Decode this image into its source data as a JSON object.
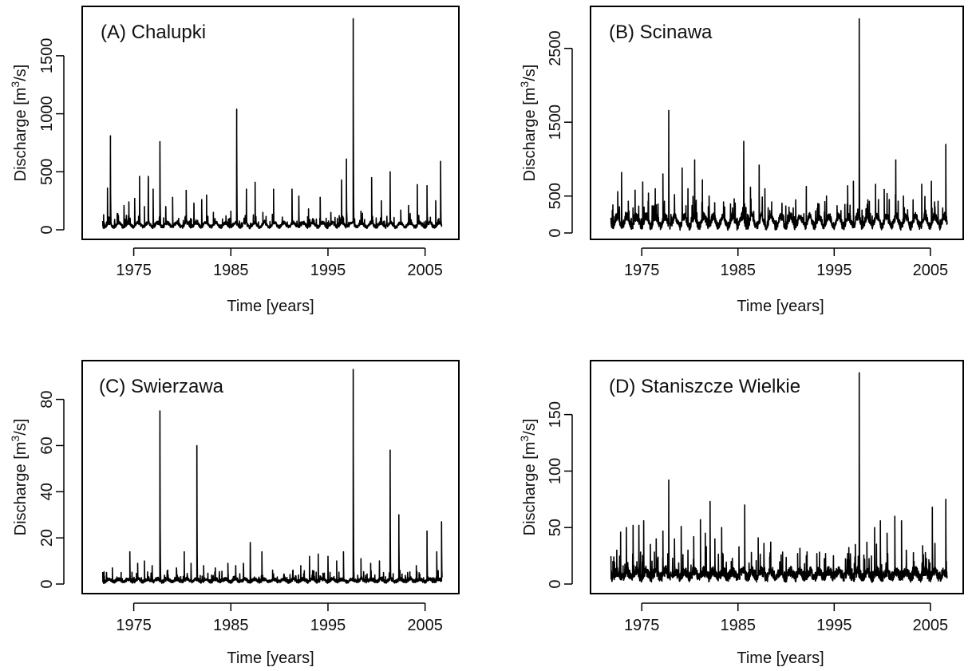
{
  "chart_data": [
    {
      "type": "line",
      "title": "(A) Chalupki",
      "xlabel": "Time [years]",
      "ylabel_main": "Discharge [m",
      "ylabel_sup": "3",
      "ylabel_end": "/s]",
      "xlim": [
        1971.5,
        2007.0
      ],
      "ylim": [
        0,
        1850
      ],
      "xticks": [
        1975,
        1985,
        1995,
        2005
      ],
      "yticks": [
        0,
        500,
        1000,
        1500
      ],
      "base": 40,
      "noise": 30,
      "peaks": [
        [
          1971.9,
          130
        ],
        [
          1972.3,
          360
        ],
        [
          1972.6,
          810
        ],
        [
          1973.3,
          140
        ],
        [
          1974.0,
          210
        ],
        [
          1974.5,
          240
        ],
        [
          1975.1,
          270
        ],
        [
          1975.6,
          460
        ],
        [
          1976.1,
          200
        ],
        [
          1976.5,
          460
        ],
        [
          1977.0,
          350
        ],
        [
          1977.7,
          760
        ],
        [
          1978.3,
          200
        ],
        [
          1979.0,
          280
        ],
        [
          1980.4,
          340
        ],
        [
          1981.2,
          230
        ],
        [
          1982.0,
          260
        ],
        [
          1982.5,
          300
        ],
        [
          1983.2,
          150
        ],
        [
          1984.5,
          120
        ],
        [
          1985.0,
          160
        ],
        [
          1985.6,
          1040
        ],
        [
          1986.6,
          350
        ],
        [
          1987.5,
          410
        ],
        [
          1988.3,
          150
        ],
        [
          1989.4,
          350
        ],
        [
          1990.3,
          110
        ],
        [
          1991.3,
          350
        ],
        [
          1992.0,
          290
        ],
        [
          1993.0,
          180
        ],
        [
          1994.2,
          280
        ],
        [
          1995.3,
          150
        ],
        [
          1996.4,
          430
        ],
        [
          1996.9,
          610
        ],
        [
          1997.6,
          1820
        ],
        [
          1998.4,
          160
        ],
        [
          1999.5,
          450
        ],
        [
          2000.5,
          250
        ],
        [
          2001.4,
          500
        ],
        [
          2002.5,
          170
        ],
        [
          2003.3,
          210
        ],
        [
          2004.2,
          390
        ],
        [
          2005.2,
          380
        ],
        [
          2006.1,
          250
        ],
        [
          2006.6,
          590
        ]
      ]
    },
    {
      "type": "line",
      "title": "(B) Scinawa",
      "xlabel": "Time [years]",
      "ylabel_main": "Discharge [m",
      "ylabel_sup": "3",
      "ylabel_end": "/s]",
      "xlim": [
        1971.5,
        2007.0
      ],
      "ylim": [
        0,
        2950
      ],
      "xticks": [
        1975,
        1985,
        1995,
        2005
      ],
      "yticks": [
        0,
        500,
        1500,
        2500
      ],
      "base": 150,
      "noise": 110,
      "peaks": [
        [
          1972.0,
          380
        ],
        [
          1972.5,
          560
        ],
        [
          1972.9,
          820
        ],
        [
          1973.6,
          430
        ],
        [
          1974.3,
          580
        ],
        [
          1975.1,
          690
        ],
        [
          1975.7,
          540
        ],
        [
          1976.4,
          600
        ],
        [
          1977.2,
          800
        ],
        [
          1977.8,
          1660
        ],
        [
          1978.4,
          520
        ],
        [
          1979.2,
          880
        ],
        [
          1979.8,
          600
        ],
        [
          1980.5,
          990
        ],
        [
          1981.3,
          720
        ],
        [
          1982.0,
          500
        ],
        [
          1983.5,
          420
        ],
        [
          1984.6,
          400
        ],
        [
          1985.6,
          1240
        ],
        [
          1986.3,
          620
        ],
        [
          1987.2,
          920
        ],
        [
          1987.8,
          600
        ],
        [
          1988.5,
          420
        ],
        [
          1990.3,
          350
        ],
        [
          1991.0,
          450
        ],
        [
          1992.1,
          630
        ],
        [
          1993.3,
          400
        ],
        [
          1994.2,
          500
        ],
        [
          1995.3,
          370
        ],
        [
          1996.4,
          640
        ],
        [
          1997.0,
          700
        ],
        [
          1997.6,
          2900
        ],
        [
          1998.5,
          450
        ],
        [
          1999.3,
          660
        ],
        [
          2000.2,
          590
        ],
        [
          2001.4,
          990
        ],
        [
          2002.2,
          500
        ],
        [
          2003.2,
          450
        ],
        [
          2004.1,
          660
        ],
        [
          2005.1,
          700
        ],
        [
          2005.8,
          430
        ],
        [
          2006.6,
          1200
        ]
      ]
    },
    {
      "type": "line",
      "title": "(C) Swierzawa",
      "xlabel": "Time [years]",
      "ylabel_main": "Discharge [m",
      "ylabel_sup": "3",
      "ylabel_end": "/s]",
      "xlim": [
        1971.5,
        2007.0
      ],
      "ylim": [
        0,
        93
      ],
      "xticks": [
        1975,
        1985,
        1995,
        2005
      ],
      "yticks": [
        0,
        20,
        40,
        60,
        80
      ],
      "base": 1.2,
      "noise": 1.5,
      "peaks": [
        [
          1972.2,
          5
        ],
        [
          1972.8,
          7
        ],
        [
          1973.7,
          5
        ],
        [
          1974.6,
          14
        ],
        [
          1975.4,
          9
        ],
        [
          1976.1,
          10
        ],
        [
          1976.9,
          8
        ],
        [
          1977.7,
          75
        ],
        [
          1978.5,
          6
        ],
        [
          1979.4,
          7
        ],
        [
          1980.2,
          14
        ],
        [
          1980.9,
          9
        ],
        [
          1981.5,
          60
        ],
        [
          1982.2,
          8
        ],
        [
          1983.4,
          7
        ],
        [
          1984.7,
          9
        ],
        [
          1985.5,
          8
        ],
        [
          1986.3,
          9
        ],
        [
          1987.0,
          18
        ],
        [
          1988.2,
          14
        ],
        [
          1989.3,
          6
        ],
        [
          1990.5,
          4
        ],
        [
          1991.4,
          6
        ],
        [
          1992.2,
          8
        ],
        [
          1993.1,
          12
        ],
        [
          1994.0,
          13
        ],
        [
          1995.0,
          12
        ],
        [
          1995.9,
          10
        ],
        [
          1996.6,
          14
        ],
        [
          1997.6,
          93
        ],
        [
          1998.4,
          11
        ],
        [
          1999.4,
          9
        ],
        [
          2000.3,
          10
        ],
        [
          2001.4,
          58
        ],
        [
          2002.3,
          30
        ],
        [
          2003.2,
          5
        ],
        [
          2004.1,
          8
        ],
        [
          2005.2,
          23
        ],
        [
          2006.2,
          14
        ],
        [
          2006.7,
          27
        ]
      ]
    },
    {
      "type": "line",
      "title": "(D) Staniszcze Wielkie",
      "xlabel": "Time [years]",
      "ylabel_main": "Discharge [m",
      "ylabel_sup": "3",
      "ylabel_end": "/s]",
      "xlim": [
        1971.5,
        2007.0
      ],
      "ylim": [
        0,
        190
      ],
      "xticks": [
        1975,
        1985,
        1995,
        2005
      ],
      "yticks": [
        0,
        50,
        100,
        150
      ],
      "base": 6,
      "noise": 9,
      "peaks": [
        [
          1972.0,
          20
        ],
        [
          1972.4,
          30
        ],
        [
          1972.8,
          46
        ],
        [
          1973.4,
          50
        ],
        [
          1974.1,
          52
        ],
        [
          1974.7,
          52
        ],
        [
          1975.2,
          56
        ],
        [
          1975.9,
          35
        ],
        [
          1976.5,
          40
        ],
        [
          1977.2,
          47
        ],
        [
          1977.8,
          92
        ],
        [
          1978.4,
          40
        ],
        [
          1979.1,
          51
        ],
        [
          1979.8,
          30
        ],
        [
          1980.4,
          42
        ],
        [
          1981.1,
          57
        ],
        [
          1981.6,
          45
        ],
        [
          1982.1,
          73
        ],
        [
          1982.6,
          40
        ],
        [
          1983.3,
          50
        ],
        [
          1984.3,
          20
        ],
        [
          1985.1,
          33
        ],
        [
          1985.7,
          70
        ],
        [
          1986.4,
          28
        ],
        [
          1987.1,
          41
        ],
        [
          1987.7,
          36
        ],
        [
          1988.3,
          24
        ],
        [
          1989.2,
          12
        ],
        [
          1991.2,
          27
        ],
        [
          1992.1,
          25
        ],
        [
          1993.2,
          27
        ],
        [
          1994.1,
          27
        ],
        [
          1995.1,
          10
        ],
        [
          1996.4,
          27
        ],
        [
          1997.2,
          35
        ],
        [
          1997.6,
          187
        ],
        [
          1998.4,
          37
        ],
        [
          1999.2,
          50
        ],
        [
          1999.8,
          56
        ],
        [
          2000.5,
          45
        ],
        [
          2001.3,
          60
        ],
        [
          2002.0,
          56
        ],
        [
          2002.5,
          30
        ],
        [
          2003.3,
          20
        ],
        [
          2004.2,
          34
        ],
        [
          2005.2,
          68
        ],
        [
          2006.6,
          75
        ]
      ]
    }
  ]
}
